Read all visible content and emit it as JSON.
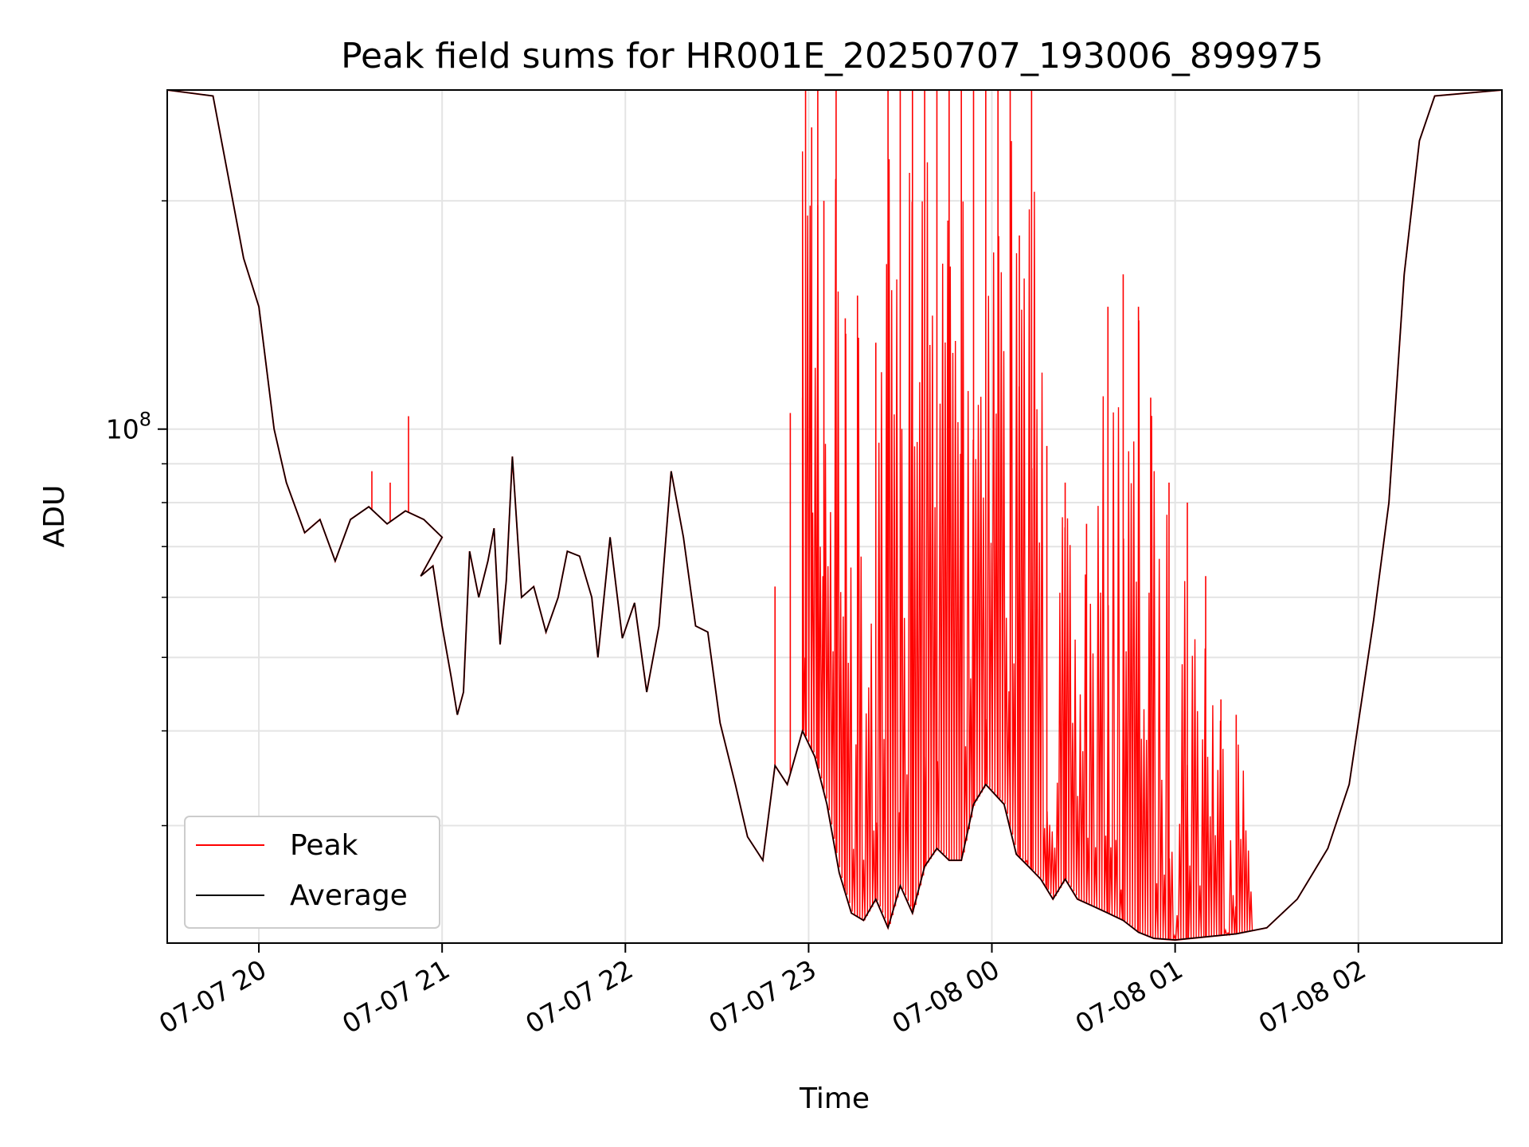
{
  "chart_data": {
    "type": "line",
    "title": "Peak field sums for HR001E_20250707_193006_899975",
    "xlabel": "Time",
    "ylabel": "ADU",
    "y_scale": "log",
    "y_range": [
      21000000,
      280000000
    ],
    "x_range": [
      "2025-07-07 19:30",
      "2025-07-08 02:47"
    ],
    "x_ticks": [
      {
        "label": "07-07 20",
        "time": "2025-07-07 20:00"
      },
      {
        "label": "07-07 21",
        "time": "2025-07-07 21:00"
      },
      {
        "label": "07-07 22",
        "time": "2025-07-07 22:00"
      },
      {
        "label": "07-07 23",
        "time": "2025-07-07 23:00"
      },
      {
        "label": "07-08 00",
        "time": "2025-07-08 00:00"
      },
      {
        "label": "07-08 01",
        "time": "2025-07-08 01:00"
      },
      {
        "label": "07-08 02",
        "time": "2025-07-08 02:00"
      }
    ],
    "y_tick_label": {
      "mantissa": "10",
      "exponent": "8",
      "value": 100000000
    },
    "y_minor_ticks": [
      30000000,
      40000000,
      50000000,
      60000000,
      70000000,
      80000000,
      90000000,
      200000000
    ],
    "grid": true,
    "legend_position": "lower-left",
    "series": [
      {
        "name": "Peak",
        "color": "#ff0000"
      },
      {
        "name": "Average",
        "color": "#000000"
      }
    ],
    "average_points": [
      [
        "2025-07-07 19:30",
        280000000
      ],
      [
        "2025-07-07 19:45",
        275000000
      ],
      [
        "2025-07-07 19:50",
        215000000
      ],
      [
        "2025-07-07 19:55",
        168000000
      ],
      [
        "2025-07-07 20:00",
        145000000
      ],
      [
        "2025-07-07 20:05",
        100000000
      ],
      [
        "2025-07-07 20:09",
        85000000
      ],
      [
        "2025-07-07 20:15",
        73000000
      ],
      [
        "2025-07-07 20:20",
        76000000
      ],
      [
        "2025-07-07 20:25",
        67000000
      ],
      [
        "2025-07-07 20:30",
        76000000
      ],
      [
        "2025-07-07 20:36",
        79000000
      ],
      [
        "2025-07-07 20:42",
        75000000
      ],
      [
        "2025-07-07 20:48",
        78000000
      ],
      [
        "2025-07-07 20:54",
        76000000
      ],
      [
        "2025-07-07 21:00",
        72000000
      ],
      [
        "2025-07-07 20:53",
        64000000
      ],
      [
        "2025-07-07 20:57",
        66000000
      ],
      [
        "2025-07-07 21:00",
        55000000
      ],
      [
        "2025-07-07 21:03",
        47000000
      ],
      [
        "2025-07-07 21:05",
        42000000
      ],
      [
        "2025-07-07 21:07",
        45000000
      ],
      [
        "2025-07-07 21:09",
        69000000
      ],
      [
        "2025-07-07 21:12",
        60000000
      ],
      [
        "2025-07-07 21:15",
        67000000
      ],
      [
        "2025-07-07 21:17",
        74000000
      ],
      [
        "2025-07-07 21:19",
        52000000
      ],
      [
        "2025-07-07 21:21",
        63000000
      ],
      [
        "2025-07-07 21:23",
        92000000
      ],
      [
        "2025-07-07 21:26",
        60000000
      ],
      [
        "2025-07-07 21:30",
        62000000
      ],
      [
        "2025-07-07 21:34",
        54000000
      ],
      [
        "2025-07-07 21:38",
        60000000
      ],
      [
        "2025-07-07 21:41",
        69000000
      ],
      [
        "2025-07-07 21:45",
        68000000
      ],
      [
        "2025-07-07 21:49",
        60000000
      ],
      [
        "2025-07-07 21:51",
        50000000
      ],
      [
        "2025-07-07 21:55",
        72000000
      ],
      [
        "2025-07-07 21:59",
        53000000
      ],
      [
        "2025-07-07 22:03",
        59000000
      ],
      [
        "2025-07-07 22:07",
        45000000
      ],
      [
        "2025-07-07 22:11",
        55000000
      ],
      [
        "2025-07-07 22:15",
        88000000
      ],
      [
        "2025-07-07 22:19",
        72000000
      ],
      [
        "2025-07-07 22:23",
        55000000
      ],
      [
        "2025-07-07 22:27",
        54000000
      ],
      [
        "2025-07-07 22:31",
        41000000
      ],
      [
        "2025-07-07 22:36",
        34000000
      ],
      [
        "2025-07-07 22:40",
        29000000
      ],
      [
        "2025-07-07 22:45",
        27000000
      ],
      [
        "2025-07-07 22:49",
        36000000
      ],
      [
        "2025-07-07 22:53",
        34000000
      ],
      [
        "2025-07-07 22:58",
        40000000
      ],
      [
        "2025-07-07 23:02",
        37000000
      ],
      [
        "2025-07-07 23:06",
        32000000
      ],
      [
        "2025-07-07 23:10",
        26000000
      ],
      [
        "2025-07-07 23:14",
        23000000
      ],
      [
        "2025-07-07 23:18",
        22500000
      ],
      [
        "2025-07-07 23:22",
        24000000
      ],
      [
        "2025-07-07 23:26",
        22000000
      ],
      [
        "2025-07-07 23:30",
        25000000
      ],
      [
        "2025-07-07 23:34",
        23000000
      ],
      [
        "2025-07-07 23:38",
        26500000
      ],
      [
        "2025-07-07 23:42",
        28000000
      ],
      [
        "2025-07-07 23:46",
        27000000
      ],
      [
        "2025-07-07 23:50",
        27000000
      ],
      [
        "2025-07-07 23:54",
        32000000
      ],
      [
        "2025-07-07 23:58",
        34000000
      ],
      [
        "2025-07-08 00:04",
        32000000
      ],
      [
        "2025-07-08 00:08",
        27500000
      ],
      [
        "2025-07-08 00:12",
        26500000
      ],
      [
        "2025-07-08 00:16",
        25500000
      ],
      [
        "2025-07-08 00:20",
        24000000
      ],
      [
        "2025-07-08 00:24",
        25500000
      ],
      [
        "2025-07-08 00:28",
        24000000
      ],
      [
        "2025-07-08 00:33",
        23500000
      ],
      [
        "2025-07-08 00:38",
        23000000
      ],
      [
        "2025-07-08 00:43",
        22500000
      ],
      [
        "2025-07-08 00:48",
        21700000
      ],
      [
        "2025-07-08 00:53",
        21300000
      ],
      [
        "2025-07-08 01:00",
        21200000
      ],
      [
        "2025-07-08 01:10",
        21400000
      ],
      [
        "2025-07-08 01:20",
        21600000
      ],
      [
        "2025-07-08 01:30",
        22000000
      ],
      [
        "2025-07-08 01:40",
        24000000
      ],
      [
        "2025-07-08 01:50",
        28000000
      ],
      [
        "2025-07-08 01:57",
        34000000
      ],
      [
        "2025-07-08 02:05",
        56000000
      ],
      [
        "2025-07-08 02:10",
        80000000
      ],
      [
        "2025-07-08 02:15",
        160000000
      ],
      [
        "2025-07-08 02:20",
        240000000
      ],
      [
        "2025-07-08 02:25",
        275000000
      ],
      [
        "2025-07-08 02:47",
        280000000
      ]
    ],
    "peak_spikes": [
      [
        "2025-07-07 20:37",
        88000000
      ],
      [
        "2025-07-07 20:43",
        85000000
      ],
      [
        "2025-07-07 20:49",
        104000000
      ],
      [
        "2025-07-07 22:49",
        62000000
      ],
      [
        "2025-07-07 22:54",
        105000000
      ],
      [
        "2025-07-07 22:58",
        110000000
      ],
      [
        "2025-07-07 22:59",
        280000000
      ],
      [
        "2025-07-07 23:01",
        250000000
      ],
      [
        "2025-07-07 23:03",
        280000000
      ],
      [
        "2025-07-07 23:05",
        200000000
      ],
      [
        "2025-07-07 23:09",
        280000000
      ],
      [
        "2025-07-07 23:12",
        140000000
      ],
      [
        "2025-07-07 23:16",
        150000000
      ],
      [
        "2025-07-07 23:22",
        130000000
      ],
      [
        "2025-07-07 23:26",
        280000000
      ],
      [
        "2025-07-07 23:30",
        280000000
      ],
      [
        "2025-07-07 23:34",
        280000000
      ],
      [
        "2025-07-07 23:38",
        280000000
      ],
      [
        "2025-07-07 23:42",
        280000000
      ],
      [
        "2025-07-07 23:46",
        280000000
      ],
      [
        "2025-07-07 23:50",
        280000000
      ],
      [
        "2025-07-07 23:54",
        280000000
      ],
      [
        "2025-07-07 23:58",
        280000000
      ],
      [
        "2025-07-08 00:02",
        280000000
      ],
      [
        "2025-07-08 00:06",
        280000000
      ],
      [
        "2025-07-08 00:09",
        180000000
      ],
      [
        "2025-07-08 00:13",
        280000000
      ],
      [
        "2025-07-08 00:18",
        95000000
      ],
      [
        "2025-07-08 00:24",
        85000000
      ],
      [
        "2025-07-08 00:31",
        75000000
      ],
      [
        "2025-07-08 00:38",
        145000000
      ],
      [
        "2025-07-08 00:43",
        160000000
      ],
      [
        "2025-07-08 00:48",
        145000000
      ],
      [
        "2025-07-08 00:52",
        110000000
      ],
      [
        "2025-07-08 00:58",
        85000000
      ],
      [
        "2025-07-08 01:04",
        80000000
      ],
      [
        "2025-07-08 01:10",
        64000000
      ],
      [
        "2025-07-08 01:15",
        44000000
      ],
      [
        "2025-07-08 01:20",
        42000000
      ]
    ]
  }
}
